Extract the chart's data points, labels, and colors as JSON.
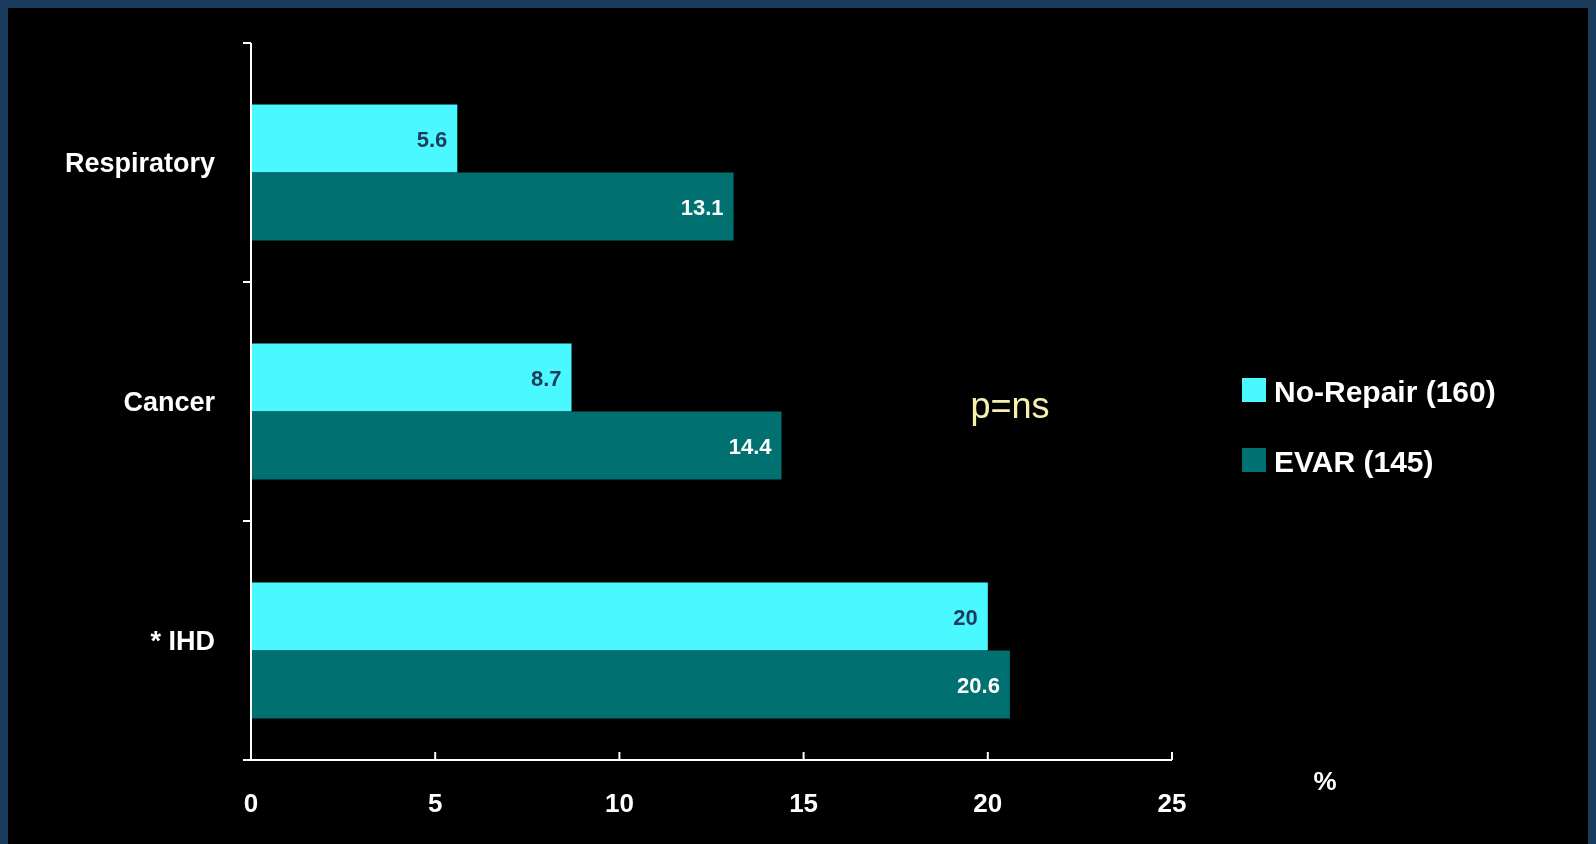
{
  "chart_data": {
    "type": "bar",
    "orientation": "horizontal",
    "categories": [
      "Respiratory",
      "Cancer",
      "*  IHD"
    ],
    "series": [
      {
        "name": "No-Repair (160)",
        "color": "#4af8ff",
        "values": [
          5.6,
          8.7,
          20
        ]
      },
      {
        "name": "EVAR (145)",
        "color": "#007070",
        "values": [
          13.1,
          14.4,
          20.6
        ]
      }
    ],
    "xlim": [
      0,
      25
    ],
    "xticks": [
      0,
      5,
      10,
      15,
      20,
      25
    ],
    "xlabel": "%",
    "data_labels": true,
    "legend": "right",
    "grid": false,
    "annotations": [
      "p=ns"
    ]
  }
}
